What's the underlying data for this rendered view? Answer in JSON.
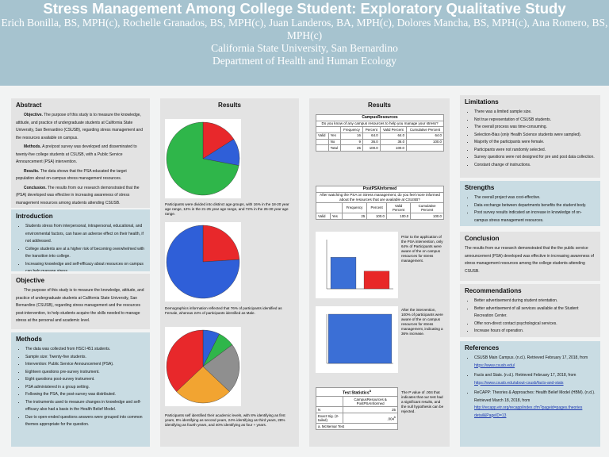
{
  "header": {
    "title": "Stress Management Among College Student: Exploratory Qualitative Study",
    "authors": "Erich Bonilla, BS, MPH(c), Rochelle Granados, BS, MPH(c), Juan Landeros, BA, MPH(c), Dolores Mancha, BS, MPH(c), Ana Romero, BS, MPH(c)",
    "university": "California State University, San Bernardino",
    "department": "Department of Health and Human Ecology"
  },
  "abstract": {
    "title": "Abstract",
    "paragraphs": [
      {
        "label": "Objective.",
        "text": "The purpose of this study is to measure the knowledge, attitude, and practice of undergraduate students at California State University, San Bernardino (CSUSB), regarding stress management and the resources available on campus."
      },
      {
        "label": "Methods.",
        "text": "A pre/post survey was developed and disseminated to twenty-five college students at CSUSB, with a Public Service Announcement (PSA) intervention."
      },
      {
        "label": "Results.",
        "text": "The data shows that the PSA educated the target population about on-campus stress management resources."
      },
      {
        "label": "Conclusion.",
        "text": "The results from our research demonstrated that the (PSA) developed was effective in increasing awareness of stress management resources among students attending CSUSB."
      }
    ]
  },
  "introduction": {
    "title": "Introduction",
    "items": [
      "Students stress from interpersonal, intrapersonal, educational, and environmental factors, can have an adverse effect on their health, if not addressed.",
      "College students are at a higher risk of becoming overwhelmed with the transition into college.",
      "Increasing knowledge and self-efficacy about resources on campus can help manage stress."
    ]
  },
  "objective": {
    "title": "Objective",
    "text": "The purpose of this study is to measure the knowledge, attitude, and practice of undergraduate students at California State University, San Bernardino (CSUSB), regarding stress management and the resources post-intervention, to help students acquire the skills needed to manage stress at the personal and academic level."
  },
  "methods": {
    "title": "Methods",
    "items": [
      "The data was collected from HSCI 451 students.",
      "Sample size: Twenty-five students.",
      "Intervention: Public Service Announcement (PSA).",
      "Eighteen questions pre-survey instrument.",
      "Eight questions post-survey instrument.",
      "PSA administered in a group setting.",
      "Following the PSA, the post-survey was distributed.",
      "The instruments used to measure changes in knowledge and self-efficacy also had a basis in the Health Belief Model.",
      "Due to open-ended questions answers were grouped into common themes appropriate for the question."
    ]
  },
  "results_left": {
    "title": "Results",
    "captions": [
      "Participants were divided into distinct age groups, with 16% in the 18-20 year age range, 12% in the 21-25 year age range, and 72% in the 26-30 year age range.",
      "Demographics information reflected that 76% of participants identified as Female, whereas 24% of participants identified as Male.",
      "Participants self identified their academic levels, with 8% identifying as first years, 8% identifying as second years, 24% identifying as third years, 28% identifying as fourth years, and 40% identifying as four + years."
    ]
  },
  "figures": [
    {
      "values": [
        16,
        12,
        72
      ],
      "colors": [
        "#e8282b",
        "#2f5fd8",
        "#2fb64a"
      ]
    },
    {
      "values": [
        24,
        76
      ],
      "colors": [
        "#e8282b",
        "#2f5fd8"
      ]
    },
    {
      "values": [
        8,
        8,
        24,
        28,
        40
      ],
      "colors": [
        "#2f5fd8",
        "#2fb64a",
        "#8f8f8f",
        "#f2a431",
        "#e8282b"
      ]
    },
    {
      "values": [
        64,
        36
      ],
      "colors": [
        "#3b6fd6",
        "#e82828"
      ],
      "ylim": [
        0,
        100
      ]
    },
    {
      "values": [
        100
      ],
      "colors": [
        "#3b6fd6"
      ],
      "ylim": [
        0,
        100
      ]
    }
  ],
  "results_right": {
    "title": "Results",
    "table1": {
      "title": "CampusResources",
      "question": "Do you know of any campus resources to help you manage your stress?",
      "headers": [
        "Frequency",
        "Percent",
        "Valid Percent",
        "Cumulative Percent"
      ],
      "rows": [
        [
          "Valid",
          "Yes",
          "16",
          "64.0",
          "64.0",
          "64.0"
        ],
        [
          null,
          "No",
          "9",
          "36.0",
          "36.0",
          "100.0"
        ],
        [
          null,
          "Total",
          "25",
          "100.0",
          "100.0",
          null
        ]
      ]
    },
    "table2": {
      "title": "PostPSAInformed",
      "question": "After watching the PSA on Stress management, do you feel more informed about the resources that are available at CSUSB?",
      "headers": [
        "Frequency",
        "Percent",
        "Valid Percent",
        "Cumulative Percent"
      ],
      "rows": [
        [
          "Valid",
          "Yes",
          "25",
          "100.0",
          "100.0",
          "100.0"
        ]
      ]
    },
    "before_text": "Prior to the application of the PSA intervention, only 64% of Participants were aware of the on campus resources for stress management.",
    "after_text": "After the intervention, 100% of participants were aware of the on campus resources for stress management, indicating a 36% increase.",
    "test": {
      "title": "Test Statistics",
      "title_note": "a",
      "header": "CampusResources & PostPSAInformed",
      "rows": [
        [
          "N",
          "25"
        ],
        [
          "Exact Sig. (2-tailed)",
          ".004"
        ]
      ],
      "sig_note": "b",
      "footnote": "a. McNemar Test"
    },
    "test_text": "The P value of .004 that indicates that our test had a significant results, and the null hypothesis can be rejected."
  },
  "limitations": {
    "title": "Limitations",
    "items": [
      "There was a limited sample size.",
      "Not true representation of CSUSB students.",
      "The overall process was time-consuming.",
      "Selection-Bias (only Health Science students were sampled).",
      "Majority of the participants were female.",
      "Participants were not randomly selected.",
      "Survey questions were not designed for pre and post data collection.",
      "Constant change of instructions."
    ]
  },
  "strengths": {
    "title": "Strengths",
    "items": [
      "The overall project was cost-effective.",
      "Data exchange between departments benefits the student body.",
      "Post survey results indicated an increase in knowledge of on-campus stress management resources."
    ]
  },
  "conclusion": {
    "title": "Conclusion",
    "text": "The results from our research demonstrated that the the public service announcement (PSA) developed was effective in increasing awareness of stress management resources among the college students attending CSUSB."
  },
  "recommendations": {
    "title": "Recommendations",
    "items": [
      "Better advertisement during student orientation.",
      "Better advertisement of all services available at the Student Recreation Center.",
      "Offer non-direct contact psychological services.",
      "Increase hours of operation."
    ]
  },
  "references": {
    "title": "References",
    "items": [
      {
        "text": "CSUSB Main Campus. (n.d.). Retrieved February 17, 2018, from",
        "url": "https://www.csusb.edu/"
      },
      {
        "text": "Facts and Stats. (n.d.). Retrieved February 17, 2018, from",
        "url": "https://www.csusb.edu/about-csusb/facts-and-stats"
      },
      {
        "text": "ReCAPP: Theories & Approaches: Health Belief Model (HBM). (n.d.). Retrieved March 18, 2018, from",
        "url": "http://recapp.etr.org/recapp/index.cfm?pageid=pages.theories detail&PageID=13"
      }
    ]
  }
}
